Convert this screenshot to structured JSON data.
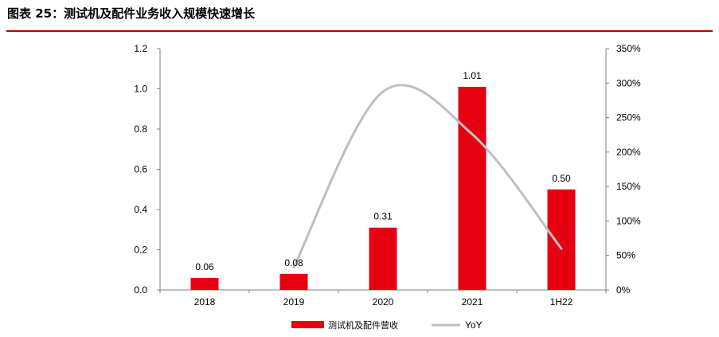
{
  "figure": {
    "title": "图表 25：测试机及配件业务收入规模快速增长",
    "accent_color": "#c00000"
  },
  "chart_data": {
    "type": "bar",
    "categories": [
      "2018",
      "2019",
      "2020",
      "2021",
      "1H22"
    ],
    "series": [
      {
        "name": "测试机及配件营收",
        "kind": "bar",
        "axis": "left",
        "color": "#e60012",
        "values": [
          0.06,
          0.08,
          0.31,
          1.01,
          0.5
        ],
        "labels": [
          "0.06",
          "0.08",
          "0.31",
          "1.01",
          "0.50"
        ]
      },
      {
        "name": "YoY",
        "kind": "line",
        "axis": "right",
        "color": "#bfbfbf",
        "smooth": true,
        "values": [
          null,
          0.33,
          2.875,
          2.26,
          0.6
        ]
      }
    ],
    "y_left": {
      "ylim": [
        0,
        1.2
      ],
      "ticks": [
        "0.0",
        "0.2",
        "0.4",
        "0.6",
        "0.8",
        "1.0",
        "1.2"
      ]
    },
    "y_right": {
      "ylim": [
        0,
        3.5
      ],
      "ticks": [
        "0%",
        "50%",
        "100%",
        "150%",
        "200%",
        "250%",
        "300%",
        "350%"
      ]
    },
    "grid": false,
    "legend_position": "bottom"
  }
}
